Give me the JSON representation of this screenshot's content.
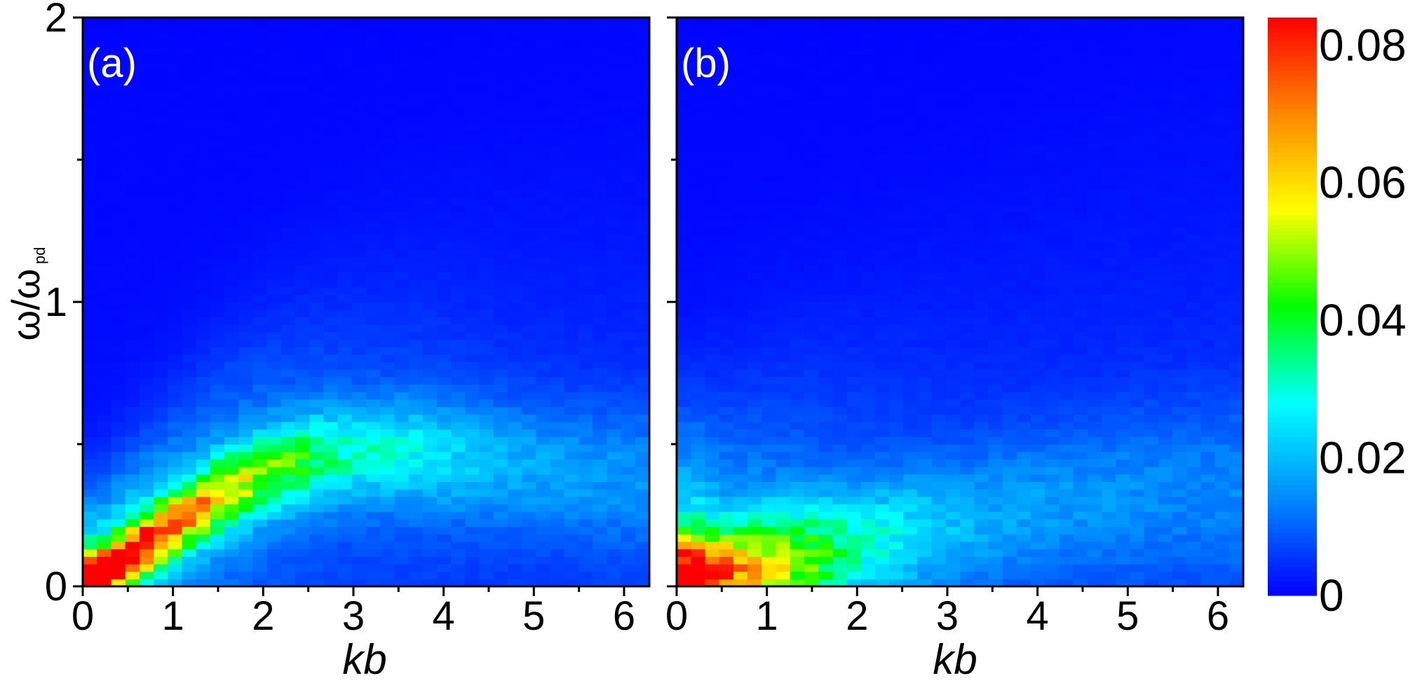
{
  "chart_data": [
    {
      "type": "heatmap",
      "panel_label": "(a)",
      "xlabel": "kb",
      "ylabel_main": "ω/ω",
      "ylabel_sub": "pd",
      "xlim": [
        0,
        6.28
      ],
      "ylim": [
        0,
        2
      ],
      "x_ticks": [
        "0",
        "1",
        "2",
        "3",
        "4",
        "5",
        "6"
      ],
      "y_ticks": [
        "0",
        "1",
        "2"
      ],
      "ridge": {
        "description": "intensity along dispersion branch ω/ωpd vs kb",
        "kb": [
          0.2,
          0.6,
          1.0,
          1.5,
          2.0,
          2.5,
          3.0,
          3.5,
          4.0,
          4.5,
          5.0,
          5.5,
          6.1
        ],
        "omega": [
          0.04,
          0.13,
          0.22,
          0.32,
          0.4,
          0.45,
          0.47,
          0.47,
          0.46,
          0.44,
          0.42,
          0.4,
          0.38
        ],
        "peak_value": [
          0.08,
          0.068,
          0.055,
          0.045,
          0.035,
          0.028,
          0.022,
          0.02,
          0.017,
          0.014,
          0.012,
          0.011,
          0.01
        ]
      }
    },
    {
      "type": "heatmap",
      "panel_label": "(b)",
      "xlabel": "kb",
      "xlim": [
        0,
        6.28
      ],
      "ylim": [
        0,
        2
      ],
      "x_ticks": [
        "0",
        "1",
        "2",
        "3",
        "4",
        "5",
        "6"
      ],
      "ridge": {
        "description": "intensity concentrated at low ω/ωpd, broad weak band",
        "kb": [
          0.2,
          0.6,
          1.0,
          1.5,
          2.0,
          2.5,
          3.0,
          3.5,
          4.0,
          4.5,
          5.0,
          5.5,
          6.1
        ],
        "omega": [
          0.02,
          0.04,
          0.07,
          0.1,
          0.14,
          0.18,
          0.22,
          0.25,
          0.28,
          0.3,
          0.32,
          0.33,
          0.34
        ],
        "peak_value": [
          0.078,
          0.05,
          0.042,
          0.032,
          0.022,
          0.018,
          0.014,
          0.012,
          0.011,
          0.01,
          0.01,
          0.009,
          0.009
        ]
      }
    }
  ],
  "colorbar": {
    "min": 0,
    "max": 0.084,
    "tick_labels": [
      "0.08",
      "0.06",
      "0.04",
      "0.02",
      "0"
    ],
    "tick_values": [
      0.08,
      0.06,
      0.04,
      0.02,
      0
    ],
    "colors": [
      "#0000ff",
      "#0088ff",
      "#00ffff",
      "#00ff00",
      "#ffff00",
      "#ff8800",
      "#ff0000"
    ]
  }
}
